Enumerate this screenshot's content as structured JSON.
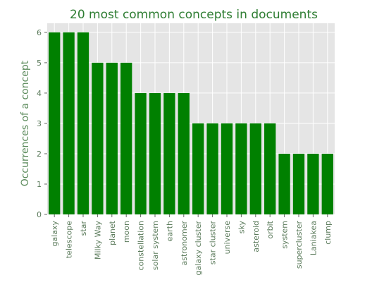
{
  "chart_data": {
    "type": "bar",
    "title": "20 most common concepts in documents",
    "xlabel": "",
    "ylabel": "Occurrences of a concept",
    "categories": [
      "galaxy",
      "telescope",
      "star",
      "Milky Way",
      "planet",
      "moon",
      "constellation",
      "solar system",
      "earth",
      "astronomer",
      "galaxy cluster",
      "star cluster",
      "universe",
      "sky",
      "asteroid",
      "orbit",
      "system",
      "supercluster",
      "Laniakea",
      "clump"
    ],
    "values": [
      6,
      6,
      6,
      5,
      5,
      5,
      4,
      4,
      4,
      4,
      3,
      3,
      3,
      3,
      3,
      3,
      2,
      2,
      2,
      2
    ],
    "ylim": [
      0,
      6.3
    ],
    "yticks": [
      0,
      1,
      2,
      3,
      4,
      5,
      6
    ],
    "grid": true,
    "bar_color": "#008000",
    "plot_background": "#e5e5e5",
    "grid_color": "#ffffff",
    "title_color": "#2e7d32",
    "label_color": "#5a8a5a"
  }
}
